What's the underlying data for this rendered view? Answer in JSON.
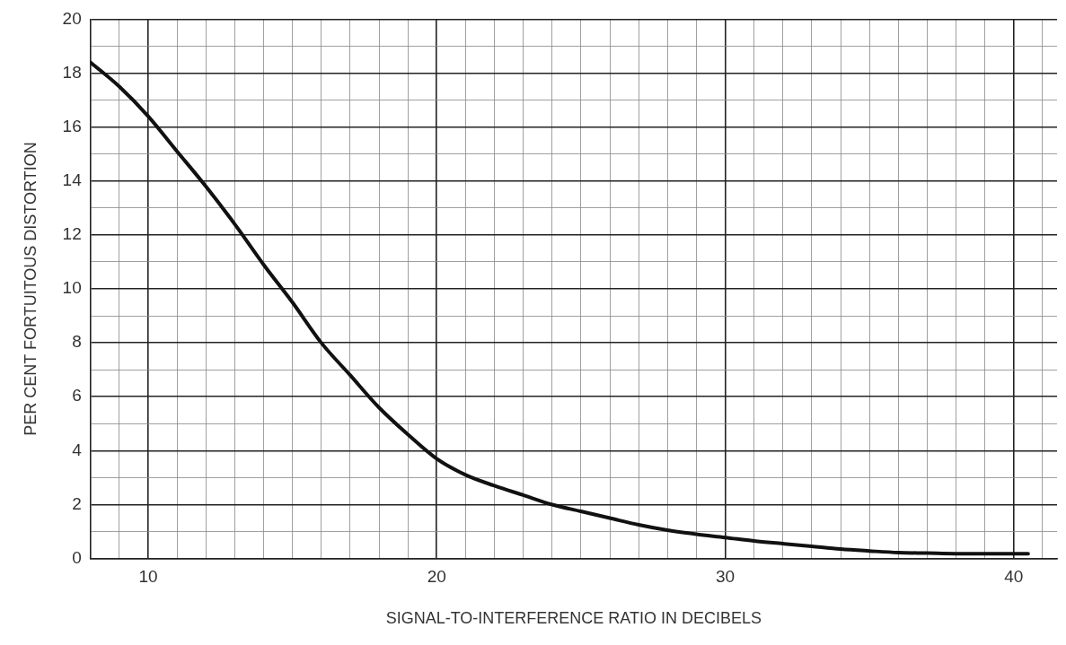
{
  "chart_data": {
    "type": "line",
    "xlabel": "SIGNAL-TO-INTERFERENCE RATIO IN DECIBELS",
    "ylabel": "PER CENT FORTUITOUS DISTORTION",
    "x": [
      8,
      9,
      10,
      11,
      12,
      13,
      14,
      15,
      16,
      17,
      18,
      19,
      20,
      21,
      22,
      23,
      24,
      25,
      26,
      27,
      28,
      29,
      30,
      31,
      32,
      33,
      34,
      35,
      36,
      37,
      38,
      39,
      40,
      40.5
    ],
    "series": [
      {
        "color": "#111111",
        "values": [
          18.4,
          17.5,
          16.4,
          15.1,
          13.8,
          12.4,
          10.9,
          9.5,
          8.0,
          6.8,
          5.6,
          4.6,
          3.7,
          3.1,
          2.7,
          2.35,
          2.0,
          1.75,
          1.5,
          1.25,
          1.05,
          0.9,
          0.78,
          0.65,
          0.55,
          0.45,
          0.35,
          0.28,
          0.22,
          0.2,
          0.18,
          0.18,
          0.18,
          0.18
        ]
      }
    ],
    "xlim": [
      8,
      41.5
    ],
    "xticks": [
      {
        "value": 8,
        "label": null
      },
      {
        "value": 9,
        "label": null
      },
      10,
      {
        "value": 11,
        "label": null
      },
      {
        "value": 12,
        "label": null
      },
      {
        "value": 13,
        "label": null
      },
      {
        "value": 14,
        "label": null
      },
      {
        "value": 15,
        "label": null
      },
      {
        "value": 16,
        "label": null
      },
      {
        "value": 17,
        "label": null
      },
      {
        "value": 18,
        "label": null
      },
      {
        "value": 19,
        "label": null
      },
      20,
      {
        "value": 21,
        "label": null
      },
      {
        "value": 22,
        "label": null
      },
      {
        "value": 23,
        "label": null
      },
      {
        "value": 24,
        "label": null
      },
      {
        "value": 25,
        "label": null
      },
      {
        "value": 26,
        "label": null
      },
      {
        "value": 27,
        "label": null
      },
      {
        "value": 28,
        "label": null
      },
      {
        "value": 29,
        "label": null
      },
      30,
      {
        "value": 31,
        "label": null
      },
      {
        "value": 32,
        "label": null
      },
      {
        "value": 33,
        "label": null
      },
      {
        "value": 34,
        "label": null
      },
      {
        "value": 35,
        "label": null
      },
      {
        "value": 36,
        "label": null
      },
      {
        "value": 37,
        "label": null
      },
      {
        "value": 38,
        "label": null
      },
      {
        "value": 39,
        "label": null
      },
      40,
      {
        "value": 41,
        "label": null
      }
    ],
    "ylim": [
      0,
      20
    ],
    "yticks": [
      0,
      {
        "value": 1,
        "label": null
      },
      2,
      {
        "value": 3,
        "label": null
      },
      4,
      {
        "value": 5,
        "label": null
      },
      6,
      {
        "value": 7,
        "label": null
      },
      8,
      {
        "value": 9,
        "label": null
      },
      10,
      {
        "value": 11,
        "label": null
      },
      12,
      {
        "value": 13,
        "label": null
      },
      14,
      {
        "value": 15,
        "label": null
      },
      16,
      {
        "value": 17,
        "label": null
      },
      18,
      {
        "value": 19,
        "label": null
      },
      20
    ],
    "grid": true,
    "legend": false,
    "marker": "none",
    "line_style": "solid"
  }
}
